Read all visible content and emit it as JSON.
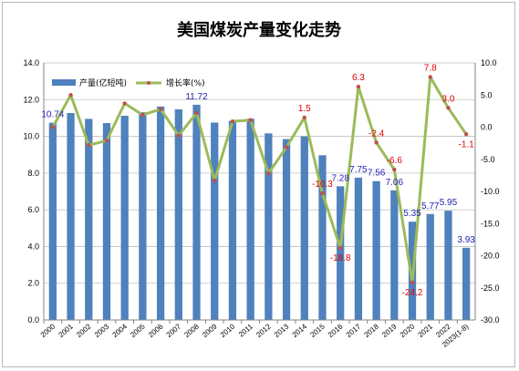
{
  "chart_data": {
    "type": "bar+line",
    "title": "美国煤炭产量变化走势",
    "categories": [
      "2000",
      "2001",
      "2002",
      "2003",
      "2004",
      "2005",
      "2006",
      "2007",
      "2008",
      "2009",
      "2010",
      "2011",
      "2012",
      "2013",
      "2014",
      "2015",
      "2016",
      "2017",
      "2018",
      "2019",
      "2020",
      "2021",
      "2022",
      "2023(1-8)"
    ],
    "series": [
      {
        "name": "产量(亿短吨)",
        "kind": "bar",
        "axis": "left",
        "color": "#4f81bd",
        "values": [
          10.74,
          11.27,
          10.95,
          10.72,
          11.12,
          11.31,
          11.62,
          11.47,
          11.72,
          10.75,
          10.84,
          10.96,
          10.16,
          9.85,
          10.0,
          8.97,
          7.28,
          7.75,
          7.56,
          7.06,
          5.35,
          5.77,
          5.95,
          3.93
        ],
        "data_labels": [
          "10.74",
          "",
          "",
          "",
          "",
          "",
          "",
          "",
          "11.72",
          "",
          "",
          "",
          "",
          "",
          "",
          "",
          "7.28",
          "7.75",
          "7.56",
          "7.06",
          "5.35",
          "5.77",
          "5.95",
          "3.93"
        ]
      },
      {
        "name": "增长率(%)",
        "kind": "line",
        "axis": "right",
        "color": "#9bbb59",
        "marker_color": "#c0504d",
        "values": [
          0.0,
          5.0,
          -2.8,
          -2.1,
          3.7,
          1.9,
          2.8,
          -1.3,
          2.2,
          -8.3,
          0.9,
          1.1,
          -7.2,
          -3.1,
          1.5,
          -10.3,
          -18.8,
          6.3,
          -2.4,
          -6.6,
          -24.2,
          7.8,
          3.0,
          -1.1
        ],
        "data_labels": [
          "",
          "",
          "",
          "",
          "",
          "",
          "",
          "",
          "",
          "",
          "",
          "",
          "",
          "",
          "1.5",
          "-10.3",
          "-18.8",
          "6.3",
          "-2.4",
          "-6.6",
          "-24.2",
          "7.8",
          "3.0",
          "-1.1"
        ]
      }
    ],
    "y_left": {
      "min": 0,
      "max": 14,
      "step": 2,
      "tick_labels": [
        "0.0",
        "2.0",
        "4.0",
        "6.0",
        "8.0",
        "10.0",
        "12.0",
        "14.0"
      ]
    },
    "y_right": {
      "min": -30,
      "max": 10,
      "step": 5,
      "tick_labels": [
        "-30.0",
        "-25.0",
        "-20.0",
        "-15.0",
        "-10.0",
        "-5.0",
        "0.0",
        "5.0",
        "10.0"
      ]
    },
    "grid": "horizontal",
    "legend_position": "top-left"
  }
}
